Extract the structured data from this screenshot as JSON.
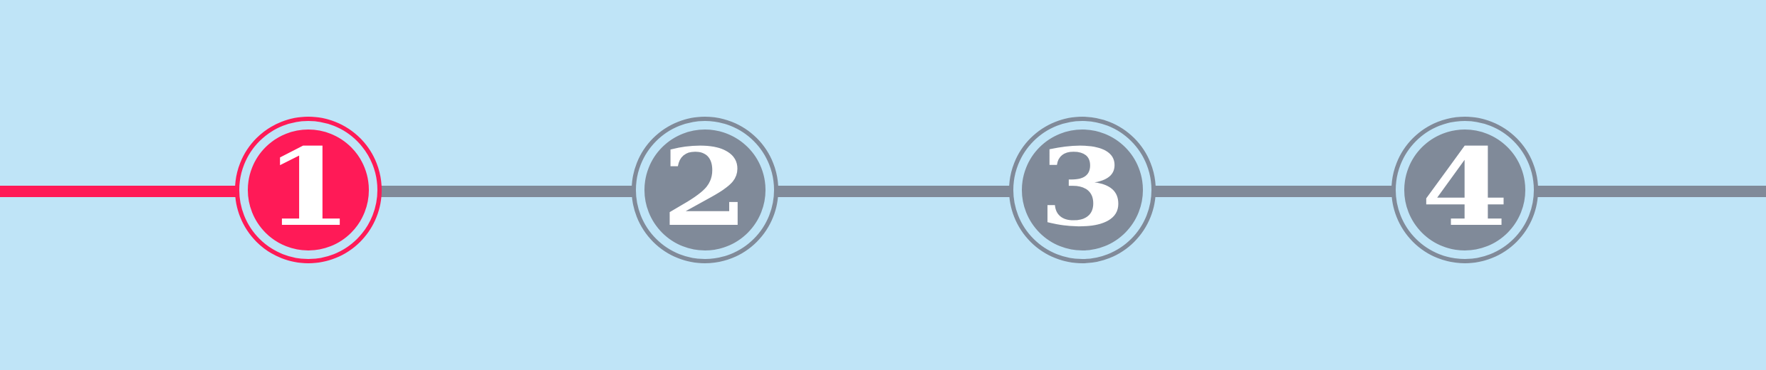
{
  "stepper": {
    "current_step": 1,
    "colors": {
      "background": "#bfe4f7",
      "active": "#ff1a57",
      "inactive": "#808a99",
      "number": "#ffffff"
    },
    "steps": [
      {
        "label": "1",
        "state": "active"
      },
      {
        "label": "2",
        "state": "inactive"
      },
      {
        "label": "3",
        "state": "inactive"
      },
      {
        "label": "4",
        "state": "inactive"
      }
    ]
  }
}
